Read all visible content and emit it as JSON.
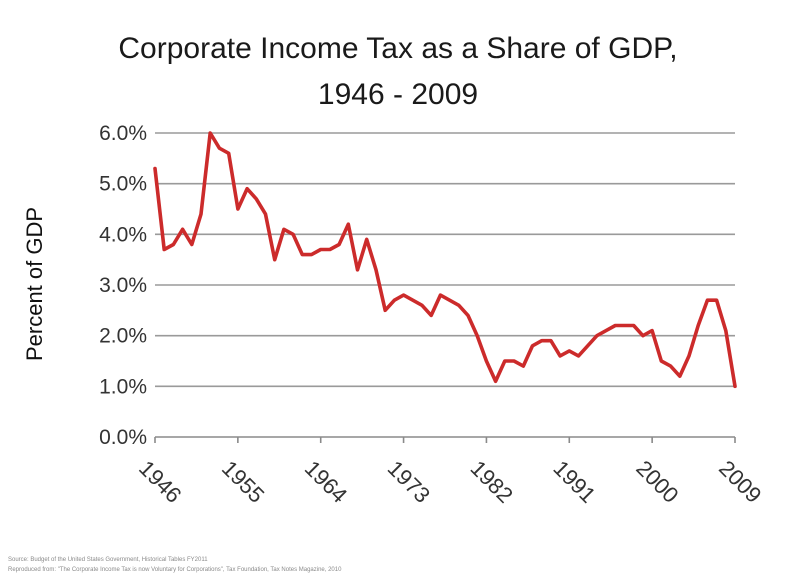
{
  "chart_data": {
    "type": "line",
    "title_lines": [
      "Corporate Income Tax as a Share of GDP,",
      "1946 - 2009"
    ],
    "xlabel": "",
    "ylabel": "Percent of GDP",
    "ylim": [
      0,
      6
    ],
    "xlim": [
      1946,
      2009
    ],
    "y_ticks": [
      {
        "value": 0,
        "label": "0.0%"
      },
      {
        "value": 1,
        "label": "1.0%"
      },
      {
        "value": 2,
        "label": "2.0%"
      },
      {
        "value": 3,
        "label": "3.0%"
      },
      {
        "value": 4,
        "label": "4.0%"
      },
      {
        "value": 5,
        "label": "5.0%"
      },
      {
        "value": 6,
        "label": "6.0%"
      }
    ],
    "x_ticks": [
      {
        "value": 1946,
        "label": "1946"
      },
      {
        "value": 1955,
        "label": "1955"
      },
      {
        "value": 1964,
        "label": "1964"
      },
      {
        "value": 1973,
        "label": "1973"
      },
      {
        "value": 1982,
        "label": "1982"
      },
      {
        "value": 1991,
        "label": "1991"
      },
      {
        "value": 2000,
        "label": "2000"
      },
      {
        "value": 2009,
        "label": "2009"
      }
    ],
    "grid": true,
    "legend": "none",
    "series": [
      {
        "color": "#cc2b2b",
        "x": [
          1946,
          1947,
          1948,
          1949,
          1950,
          1951,
          1952,
          1953,
          1954,
          1955,
          1956,
          1957,
          1958,
          1959,
          1960,
          1961,
          1962,
          1963,
          1964,
          1965,
          1966,
          1967,
          1968,
          1969,
          1970,
          1971,
          1972,
          1973,
          1974,
          1975,
          1976,
          1977,
          1978,
          1979,
          1980,
          1981,
          1982,
          1983,
          1984,
          1985,
          1986,
          1987,
          1988,
          1989,
          1990,
          1991,
          1992,
          1993,
          1994,
          1995,
          1996,
          1997,
          1998,
          1999,
          2000,
          2001,
          2002,
          2003,
          2004,
          2005,
          2006,
          2007,
          2008,
          2009
        ],
        "values": [
          5.3,
          3.7,
          3.8,
          4.1,
          3.8,
          4.4,
          6.0,
          5.7,
          5.6,
          4.5,
          4.9,
          4.7,
          4.4,
          3.5,
          4.1,
          4.0,
          3.6,
          3.6,
          3.7,
          3.7,
          3.8,
          4.2,
          3.3,
          3.9,
          3.3,
          2.5,
          2.7,
          2.8,
          2.7,
          2.6,
          2.4,
          2.8,
          2.7,
          2.6,
          2.4,
          2.0,
          1.5,
          1.1,
          1.5,
          1.5,
          1.4,
          1.8,
          1.9,
          1.9,
          1.6,
          1.7,
          1.6,
          1.8,
          2.0,
          2.1,
          2.2,
          2.2,
          2.2,
          2.0,
          2.1,
          1.5,
          1.4,
          1.2,
          1.6,
          2.2,
          2.7,
          2.7,
          2.1,
          1.0
        ]
      }
    ]
  },
  "source_note": {
    "line1": "Source: Budget of the United States Government, Historical Tables FY2011",
    "line2": "Reproduced from: \"The Corporate Income Tax is now Voluntary for Corporations\", Tax Foundation, Tax Notes Magazine, 2010"
  }
}
